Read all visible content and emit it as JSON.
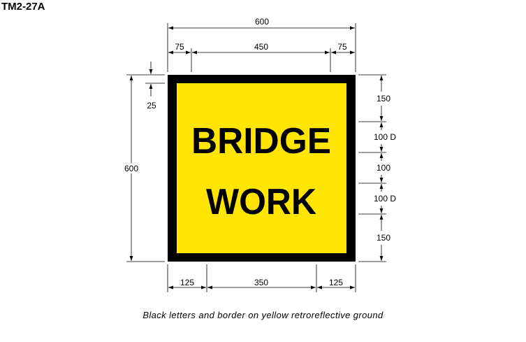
{
  "sign_code": "TM2-27A",
  "caption": "Black letters and border on yellow retroreflective ground",
  "sign": {
    "lines": [
      "BRIDGE",
      "WORK"
    ],
    "background_color": "#FFE500",
    "border_color": "#000000",
    "letter_color": "#000000"
  },
  "dimensions": {
    "top_overall": "600",
    "top_left": "75",
    "top_middle": "450",
    "top_right": "75",
    "left_overall": "600",
    "left_border": "25",
    "right": [
      "150",
      "100 D",
      "100",
      "100 D",
      "150"
    ],
    "bottom": [
      "125",
      "350",
      "125"
    ]
  }
}
